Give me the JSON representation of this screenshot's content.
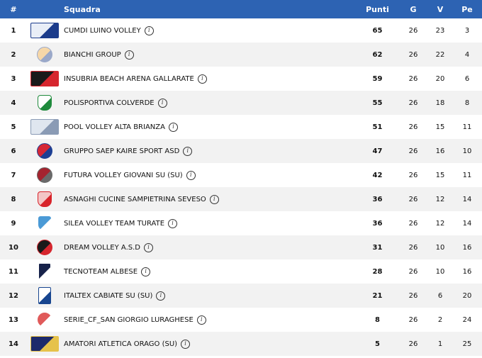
{
  "header": {
    "pos": "#",
    "team": "Squadra",
    "points": "Punti",
    "played": "G",
    "won": "V",
    "lost": "Pe"
  },
  "rows": [
    {
      "pos": "1",
      "team": "CUMDI LUINO VOLLEY",
      "points": "65",
      "played": "26",
      "won": "23",
      "lost": "3",
      "logo": {
        "icon": "volley-text-logo-icon",
        "color": "#e9eef7",
        "accent": "#1c3c8c"
      }
    },
    {
      "pos": "2",
      "team": "BIANCHI GROUP",
      "points": "62",
      "played": "26",
      "won": "22",
      "lost": "4",
      "logo": {
        "icon": "shield-crest-logo-icon",
        "color": "#f6d7a8",
        "accent": "#9aa8c9"
      }
    },
    {
      "pos": "3",
      "team": "INSUBRIA BEACH ARENA GALLARATE",
      "points": "59",
      "played": "26",
      "won": "20",
      "lost": "6",
      "logo": {
        "icon": "insubria-logo-icon",
        "color": "#1a1a1a",
        "accent": "#d6262e"
      }
    },
    {
      "pos": "4",
      "team": "POLISPORTIVA COLVERDE",
      "points": "55",
      "played": "26",
      "won": "18",
      "lost": "8",
      "logo": {
        "icon": "green-v-logo-icon",
        "color": "#ffffff",
        "accent": "#1f8a3c"
      }
    },
    {
      "pos": "5",
      "team": "POOL VOLLEY ALTA BRIANZA",
      "points": "51",
      "played": "26",
      "won": "15",
      "lost": "11",
      "logo": {
        "icon": "banner-logo-icon",
        "color": "#dfe6ef",
        "accent": "#8a9bb5"
      }
    },
    {
      "pos": "6",
      "team": "GRUPPO SAEP KAIRE SPORT ASD",
      "points": "47",
      "played": "26",
      "won": "16",
      "lost": "10",
      "logo": {
        "icon": "round-badge-logo-icon",
        "color": "#d62735",
        "accent": "#1d3f93"
      }
    },
    {
      "pos": "7",
      "team": "FUTURA VOLLEY GIOVANI SU (SU)",
      "points": "42",
      "played": "26",
      "won": "15",
      "lost": "11",
      "logo": {
        "icon": "red-shield-logo-icon",
        "color": "#a5242f",
        "accent": "#6a6a6a"
      }
    },
    {
      "pos": "8",
      "team": "ASNAGHI CUCINE SAMPIETRINA SEVESO",
      "points": "36",
      "played": "26",
      "won": "12",
      "lost": "14",
      "logo": {
        "icon": "red-white-shield-logo-icon",
        "color": "#f3c6c6",
        "accent": "#d8232a"
      }
    },
    {
      "pos": "9",
      "team": "SILEA VOLLEY TEAM TURATE",
      "points": "36",
      "played": "26",
      "won": "12",
      "lost": "14",
      "logo": {
        "icon": "blue-crest-logo-icon",
        "color": "#4a9ad6",
        "accent": "#ffffff"
      }
    },
    {
      "pos": "10",
      "team": "DREAM VOLLEY A.S.D",
      "points": "31",
      "played": "26",
      "won": "10",
      "lost": "16",
      "logo": {
        "icon": "mascot-logo-icon",
        "color": "#1a1a1a",
        "accent": "#d6262e"
      }
    },
    {
      "pos": "11",
      "team": "TECNOTEAM ALBESE",
      "points": "28",
      "played": "26",
      "won": "10",
      "lost": "16",
      "logo": {
        "icon": "player-silhouette-logo-icon",
        "color": "#17224a",
        "accent": "#ffffff"
      }
    },
    {
      "pos": "12",
      "team": "ITALTEX CABIATE SU (SU)",
      "points": "21",
      "played": "26",
      "won": "6",
      "lost": "20",
      "logo": {
        "icon": "cabiate-logo-icon",
        "color": "#ffffff",
        "accent": "#17458f"
      }
    },
    {
      "pos": "13",
      "team": "SERIE_CF_SAN GIORGIO LURAGHESE",
      "points": "8",
      "played": "26",
      "won": "2",
      "lost": "24",
      "logo": {
        "icon": "red-round-shield-logo-icon",
        "color": "#e05a5a",
        "accent": "#ffffff"
      }
    },
    {
      "pos": "14",
      "team": "AMATORI ATLETICA ORAGO (SU)",
      "points": "5",
      "played": "26",
      "won": "1",
      "lost": "25",
      "logo": {
        "icon": "navy-banner-logo-icon",
        "color": "#1d2a6b",
        "accent": "#e6c24a"
      }
    }
  ],
  "info_icon": "info-icon"
}
